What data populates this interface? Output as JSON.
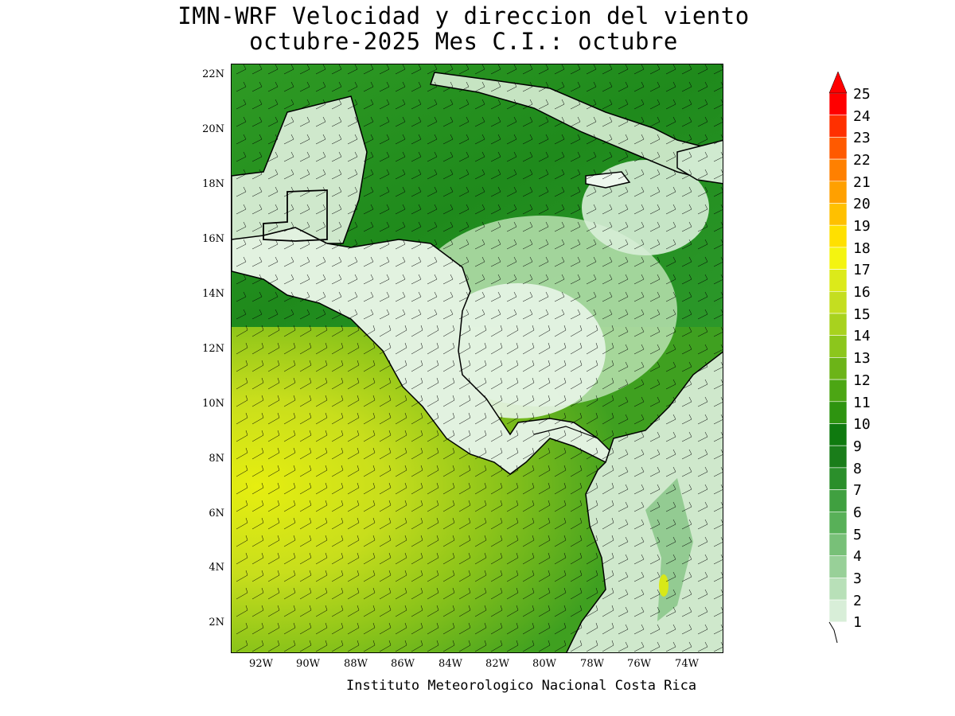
{
  "title": {
    "line1": "IMN-WRF Velocidad y direccion del viento",
    "line2": "octubre-2025 Mes C.I.: octubre"
  },
  "footer": "Instituto Meteorologico Nacional Costa Rica",
  "map": {
    "lon_range": [
      -93.0,
      -72.8
    ],
    "lat_range": [
      1.0,
      22.4
    ],
    "lat_ticks": [
      "22N",
      "20N",
      "18N",
      "16N",
      "14N",
      "12N",
      "10N",
      "8N",
      "6N",
      "4N",
      "2N"
    ],
    "lon_ticks": [
      "92W",
      "90W",
      "88W",
      "86W",
      "84W",
      "82W",
      "80W",
      "78W",
      "76W",
      "74W"
    ],
    "land_color": "#ffffff",
    "coast_color": "#000000"
  },
  "colorbar": {
    "labels": [
      "25",
      "24",
      "23",
      "22",
      "21",
      "20",
      "19",
      "18",
      "17",
      "16",
      "15",
      "14",
      "13",
      "12",
      "11",
      "10",
      "9",
      "8",
      "7",
      "6",
      "5",
      "4",
      "3",
      "2",
      "1"
    ],
    "colors": [
      "#ffffff",
      "#d8eed8",
      "#b8e0b8",
      "#98d098",
      "#78c078",
      "#58b058",
      "#40a040",
      "#2b8f2b",
      "#1a7d1a",
      "#0f7a0f",
      "#2e9410",
      "#4ca614",
      "#6cb418",
      "#8cc61c",
      "#a8d21e",
      "#c4de20",
      "#dcea1a",
      "#f4f410",
      "#ffe000",
      "#ffc000",
      "#ffa000",
      "#ff8000",
      "#ff5a00",
      "#ff3000",
      "#ff0000"
    ],
    "unit_hint": "wind barb legend"
  }
}
